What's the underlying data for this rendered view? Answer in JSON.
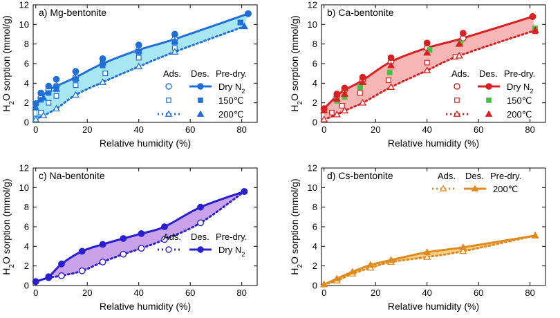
{
  "chart_data": [
    {
      "type": "scatter",
      "id": "mg",
      "title": "a) Mg-bentonite",
      "xlabel": "Relative humidity (%)",
      "ylabel": "H2O sorption (mmol/g)",
      "xlim": [
        -1,
        86
      ],
      "ylim": [
        0,
        12
      ],
      "xticks": [
        0,
        20,
        40,
        60,
        80
      ],
      "yticks": [
        0,
        2,
        4,
        6,
        8,
        10,
        12
      ],
      "colors": {
        "main": "#1f6fd6",
        "fill": "#a8e6f2"
      },
      "legend": {
        "headers": [
          "Ads.",
          "Des.",
          "Pre-dry."
        ],
        "rows": [
          "Dry N2",
          "150℃",
          "200℃"
        ]
      },
      "series": [
        {
          "name": "Dry N2 adsorption",
          "x": [
            0,
            2,
            5,
            8,
            15.5,
            26,
            40,
            54,
            82.5
          ],
          "y": [
            1.9,
            2.5,
            3.3,
            3.7,
            4.6,
            6.0,
            7.4,
            8.5,
            11.1
          ]
        },
        {
          "name": "Dry N2 desorption",
          "x": [
            0,
            2,
            5,
            8,
            15.5,
            26,
            40,
            54,
            82.5
          ],
          "y": [
            1.9,
            3.0,
            3.7,
            4.4,
            5.2,
            6.5,
            7.9,
            9.0,
            11.1
          ]
        },
        {
          "name": "150C adsorption",
          "x": [
            0,
            2,
            5,
            8,
            15.5,
            27,
            40,
            54,
            79.5
          ],
          "y": [
            0.4,
            1.0,
            2.0,
            2.7,
            3.8,
            5.0,
            6.6,
            7.6,
            10.2
          ]
        },
        {
          "name": "150C desorption",
          "x": [
            2,
            5,
            8,
            15.5,
            26,
            40,
            54,
            79.5
          ],
          "y": [
            2.3,
            3.0,
            3.6,
            4.4,
            5.8,
            7.2,
            8.2,
            10.2
          ]
        },
        {
          "name": "200C adsorption",
          "x": [
            0,
            3,
            8,
            15.5,
            26,
            40,
            54,
            81
          ],
          "y": [
            0.3,
            0.7,
            1.4,
            2.8,
            4.1,
            5.7,
            7.2,
            9.8
          ]
        },
        {
          "name": "200C desorption",
          "x": [
            0,
            3,
            8,
            15.5,
            26,
            40,
            54,
            81
          ],
          "y": [
            1.5,
            2.5,
            3.4,
            4.5,
            6.1,
            7.3,
            8.3,
            9.8
          ]
        }
      ]
    },
    {
      "type": "scatter",
      "id": "ca",
      "title": "b) Ca-bentonite",
      "xlabel": "Relative humidity (%)",
      "ylabel": "H2O sorption (mmol/g)",
      "xlim": [
        -1,
        86
      ],
      "ylim": [
        0,
        12
      ],
      "xticks": [
        0,
        20,
        40,
        60,
        80
      ],
      "yticks": [
        0,
        2,
        4,
        6,
        8,
        10,
        12
      ],
      "colors": {
        "main": "#d92020",
        "fill": "#f6b6b6",
        "green": "#44c044"
      },
      "legend": {
        "headers": [
          "Ads.",
          "Des.",
          "Pre-dry."
        ],
        "rows": [
          "Dry N2",
          "150℃",
          "200℃"
        ]
      },
      "series": [
        {
          "name": "Dry N2 adsorption",
          "x": [
            0,
            5,
            8,
            15,
            26,
            40,
            54,
            81
          ],
          "y": [
            1.4,
            2.7,
            3.3,
            4.3,
            6.2,
            7.6,
            8.6,
            10.8
          ]
        },
        {
          "name": "Dry N2 desorption",
          "x": [
            0,
            5,
            8,
            15,
            26,
            40,
            54,
            81
          ],
          "y": [
            1.4,
            2.9,
            3.5,
            4.6,
            6.6,
            8.1,
            9.1,
            10.8
          ]
        },
        {
          "name": "150C adsorption",
          "x": [
            3,
            7,
            14,
            25,
            40,
            51,
            82
          ],
          "y": [
            1.0,
            1.7,
            3.0,
            4.3,
            6.1,
            6.7,
            9.3
          ]
        },
        {
          "name": "150C desorption",
          "x": [
            5,
            8,
            14,
            25.5,
            41,
            53,
            82
          ],
          "y": [
            2.2,
            2.6,
            3.6,
            5.1,
            7.4,
            8.1,
            9.6
          ]
        },
        {
          "name": "200C adsorption",
          "x": [
            0,
            5,
            8,
            15,
            26,
            40,
            52.5,
            82
          ],
          "y": [
            0.3,
            0.8,
            1.2,
            2.0,
            3.6,
            5.3,
            6.8,
            9.4
          ]
        },
        {
          "name": "200C desorption",
          "x": [
            0,
            5,
            8,
            15,
            26,
            40,
            52.5,
            82
          ],
          "y": [
            1.2,
            2.4,
            2.9,
            4.1,
            5.8,
            7.1,
            8.0,
            9.4
          ]
        }
      ]
    },
    {
      "type": "scatter",
      "id": "na",
      "title": "c) Na-bentonite",
      "xlabel": "Relative humidity (%)",
      "ylabel": "H2O sorption (mmol/g)",
      "xlim": [
        -1,
        86
      ],
      "ylim": [
        0,
        12
      ],
      "xticks": [
        0,
        20,
        40,
        60,
        80
      ],
      "yticks": [
        0,
        2,
        4,
        6,
        8,
        10,
        12
      ],
      "colors": {
        "main": "#2a1fd0",
        "fill": "#c9a2ea"
      },
      "legend": {
        "headers": [
          "Ads.",
          "Des.",
          "Pre-dry."
        ],
        "rows": [
          "Dry N2"
        ]
      },
      "series": [
        {
          "name": "Dry N2 adsorption",
          "x": [
            0,
            5,
            10,
            18,
            26,
            34,
            41,
            50,
            64,
            81
          ],
          "y": [
            0.4,
            0.8,
            1.0,
            1.5,
            2.4,
            3.2,
            3.8,
            4.7,
            6.4,
            9.6
          ]
        },
        {
          "name": "Dry N2 desorption",
          "x": [
            0,
            5,
            10,
            18,
            26,
            34,
            41,
            50,
            64,
            81
          ],
          "y": [
            0.4,
            0.9,
            2.2,
            3.5,
            4.2,
            4.8,
            5.3,
            6.0,
            8.0,
            9.6
          ]
        }
      ]
    },
    {
      "type": "scatter",
      "id": "cs",
      "title": "d) Cs-bentonite",
      "xlabel": "Relative humidity (%)",
      "ylabel": "H2O sorption (mmol/g)",
      "xlim": [
        -1,
        86
      ],
      "ylim": [
        0,
        12
      ],
      "xticks": [
        0,
        20,
        40,
        60,
        80
      ],
      "yticks": [
        0,
        2,
        4,
        6,
        8,
        10,
        12
      ],
      "colors": {
        "main": "#e08a1e",
        "fill": "#f7cf88"
      },
      "legend": {
        "headers": [
          "Ads.",
          "Des.",
          "Pre-dry."
        ],
        "rows": [
          "200℃"
        ]
      },
      "series": [
        {
          "name": "200C adsorption",
          "x": [
            0,
            5,
            11,
            18,
            26,
            40,
            54,
            82
          ],
          "y": [
            0.1,
            0.5,
            1.2,
            1.8,
            2.4,
            2.9,
            3.5,
            5.1
          ]
        },
        {
          "name": "200C desorption",
          "x": [
            0,
            5,
            11,
            18,
            26,
            40,
            54,
            82
          ],
          "y": [
            0.1,
            0.7,
            1.4,
            2.1,
            2.6,
            3.4,
            3.9,
            5.1
          ]
        }
      ]
    }
  ]
}
